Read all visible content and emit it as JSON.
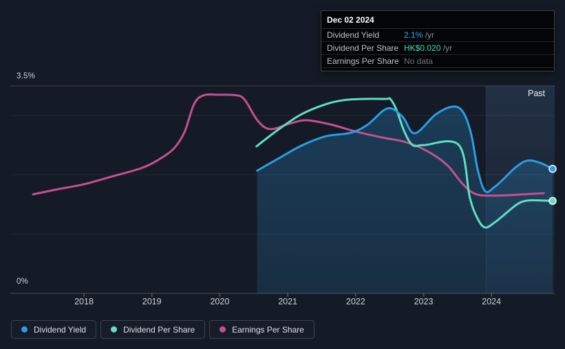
{
  "tooltip": {
    "date": "Dec 02 2024",
    "rows": [
      {
        "label": "Dividend Yield",
        "value": "2.1%",
        "suffix": " /yr",
        "value_color": "#36a2f2"
      },
      {
        "label": "Dividend Per Share",
        "value": "HK$0.020",
        "suffix": " /yr",
        "value_color": "#44dfc2"
      },
      {
        "label": "Earnings Per Share",
        "value": "No data",
        "suffix": "",
        "value_color": "#6f757e"
      }
    ]
  },
  "legend": [
    {
      "label": "Dividend Yield",
      "color": "#2b9de4"
    },
    {
      "label": "Dividend Per Share",
      "color": "#5ee0c2"
    },
    {
      "label": "Earnings Per Share",
      "color": "#c6508f"
    }
  ],
  "chart_data": {
    "type": "line",
    "title": "",
    "y_axis": {
      "min": 0,
      "max": 3.5,
      "top_label": "3.5%",
      "bottom_label": "0%",
      "gridlines_percent": [
        0,
        1,
        2,
        3,
        3.5
      ]
    },
    "x_axis": {
      "ticks": [
        2018,
        2019,
        2020,
        2021,
        2022,
        2023,
        2024
      ]
    },
    "past_region": {
      "label": "Past",
      "start": 2023.92,
      "end": 2024.93
    },
    "colors": {
      "background": "#151b26",
      "dividend_yield": "#2b9de4",
      "dividend_per_share": "#5ee0c2",
      "earnings_per_share": "#c6508f",
      "yield_area_fill": "rgba(43,157,228,0.22)"
    },
    "series": [
      {
        "name": "Earnings Per Share",
        "color": "#c6508f",
        "unit": "% of axis scale",
        "end_dot": false,
        "points": [
          [
            2017.25,
            1.67
          ],
          [
            2017.63,
            1.76
          ],
          [
            2018.0,
            1.84
          ],
          [
            2018.44,
            1.98
          ],
          [
            2018.84,
            2.11
          ],
          [
            2019.09,
            2.25
          ],
          [
            2019.32,
            2.44
          ],
          [
            2019.48,
            2.72
          ],
          [
            2019.62,
            3.19
          ],
          [
            2019.76,
            3.34
          ],
          [
            2020.0,
            3.35
          ],
          [
            2020.25,
            3.34
          ],
          [
            2020.37,
            3.26
          ],
          [
            2020.56,
            2.91
          ],
          [
            2020.74,
            2.77
          ],
          [
            2021.02,
            2.86
          ],
          [
            2021.27,
            2.92
          ],
          [
            2021.63,
            2.85
          ],
          [
            2022.0,
            2.73
          ],
          [
            2022.39,
            2.63
          ],
          [
            2022.74,
            2.55
          ],
          [
            2023.07,
            2.39
          ],
          [
            2023.35,
            2.16
          ],
          [
            2023.58,
            1.84
          ],
          [
            2023.78,
            1.67
          ],
          [
            2024.11,
            1.65
          ],
          [
            2024.46,
            1.67
          ],
          [
            2024.77,
            1.69
          ]
        ]
      },
      {
        "name": "Dividend Per Share",
        "color": "#5ee0c2",
        "unit": "% of axis scale (HK$0.020 = 1.56)",
        "end_dot": true,
        "points": [
          [
            2020.54,
            2.48
          ],
          [
            2020.87,
            2.77
          ],
          [
            2021.2,
            3.02
          ],
          [
            2021.56,
            3.19
          ],
          [
            2021.83,
            3.26
          ],
          [
            2022.13,
            3.28
          ],
          [
            2022.45,
            3.28
          ],
          [
            2022.51,
            3.28
          ],
          [
            2022.6,
            3.1
          ],
          [
            2022.72,
            2.72
          ],
          [
            2022.84,
            2.5
          ],
          [
            2023.0,
            2.5
          ],
          [
            2023.52,
            2.5
          ],
          [
            2023.68,
            1.62
          ],
          [
            2023.8,
            1.25
          ],
          [
            2023.91,
            1.11
          ],
          [
            2024.05,
            1.2
          ],
          [
            2024.16,
            1.3
          ],
          [
            2024.35,
            1.48
          ],
          [
            2024.46,
            1.55
          ],
          [
            2024.6,
            1.57
          ],
          [
            2024.9,
            1.56
          ]
        ]
      },
      {
        "name": "Dividend Yield",
        "color": "#2b9de4",
        "unit": "percent",
        "area": true,
        "end_dot": true,
        "points": [
          [
            2020.55,
            2.07
          ],
          [
            2020.87,
            2.28
          ],
          [
            2021.2,
            2.49
          ],
          [
            2021.56,
            2.65
          ],
          [
            2021.93,
            2.71
          ],
          [
            2022.18,
            2.85
          ],
          [
            2022.47,
            3.12
          ],
          [
            2022.69,
            2.98
          ],
          [
            2022.87,
            2.7
          ],
          [
            2023.18,
            3.02
          ],
          [
            2023.43,
            3.15
          ],
          [
            2023.58,
            3.06
          ],
          [
            2023.7,
            2.69
          ],
          [
            2023.8,
            2.07
          ],
          [
            2023.91,
            1.72
          ],
          [
            2024.05,
            1.8
          ],
          [
            2024.16,
            1.91
          ],
          [
            2024.36,
            2.13
          ],
          [
            2024.53,
            2.24
          ],
          [
            2024.72,
            2.2
          ],
          [
            2024.9,
            2.1
          ]
        ]
      }
    ]
  }
}
